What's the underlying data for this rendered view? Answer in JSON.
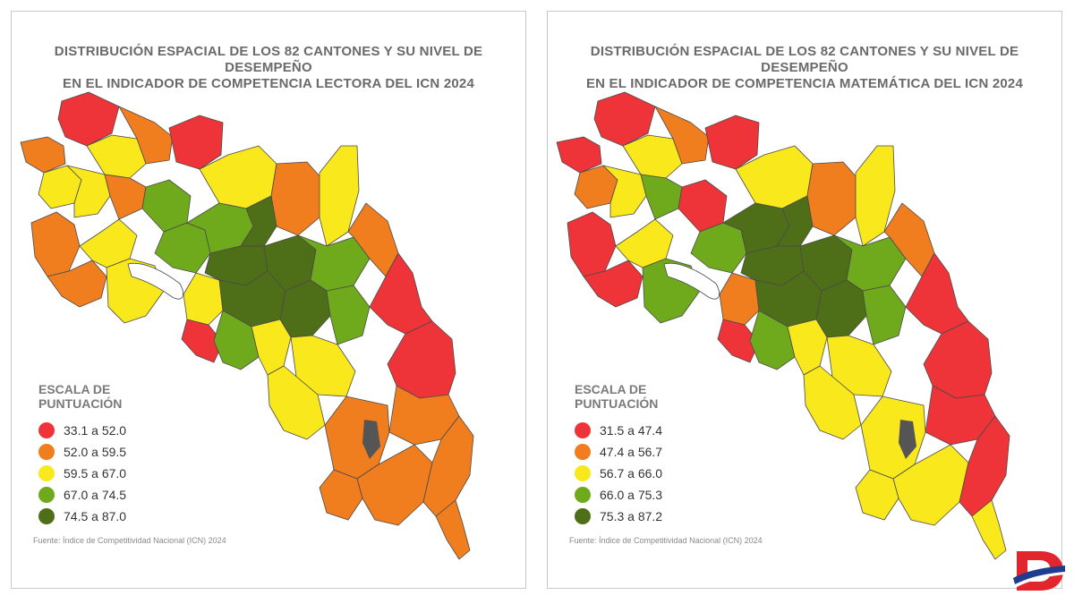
{
  "maps": [
    {
      "title_line1": "DISTRIBUCIÓN ESPACIAL DE LOS 82 CANTONES Y SU NIVEL DE DESEMPEÑO",
      "title_line2": "EN EL INDICADOR DE  COMPETENCIA LECTORA DEL ICN 2024",
      "legend_title_line1": "ESCALA DE",
      "legend_title_line2": "PUNTUACIÓN",
      "legend": [
        {
          "label": "33.1 a 52.0",
          "color": "#ee3438",
          "min": 33.1,
          "max": 52.0
        },
        {
          "label": "52.0 a 59.5",
          "color": "#f07d1e",
          "min": 52.0,
          "max": 59.5
        },
        {
          "label": "59.5 a 67.0",
          "color": "#f8e81c",
          "min": 59.5,
          "max": 67.0
        },
        {
          "label": "67.0 a 74.5",
          "color": "#6faa1c",
          "min": 67.0,
          "max": 74.5
        },
        {
          "label": "74.5 a 87.0",
          "color": "#4f6e18",
          "min": 74.5,
          "max": 87.0
        }
      ],
      "source": "Fuente: Índice de Competitividad Nacional (ICN) 2024"
    },
    {
      "title_line1": "DISTRIBUCIÓN ESPACIAL DE LOS 82 CANTONES Y SU NIVEL DE DESEMPEÑO",
      "title_line2": "EN EL INDICADOR DE  COMPETENCIA MATEMÁTICA DEL ICN 2024",
      "legend_title_line1": "ESCALA DE",
      "legend_title_line2": "PUNTUACIÓN",
      "legend": [
        {
          "label": "31.5 a 47.4",
          "color": "#ee3438",
          "min": 31.5,
          "max": 47.4
        },
        {
          "label": "47.4 a 56.7",
          "color": "#f07d1e",
          "min": 47.4,
          "max": 56.7
        },
        {
          "label": "56.7 a 66.0",
          "color": "#f8e81c",
          "min": 56.7,
          "max": 66.0
        },
        {
          "label": "66.0 a 75.3",
          "color": "#6faa1c",
          "min": 66.0,
          "max": 75.3
        },
        {
          "label": "75.3 a 87.2",
          "color": "#4f6e18",
          "min": 75.3,
          "max": 87.2
        }
      ],
      "source": "Fuente: Índice de Competitividad Nacional (ICN) 2024"
    }
  ],
  "colors": {
    "border": "#4a4a4a",
    "lake": "#ffffff",
    "logo_red": "#e3262d",
    "logo_blue": "#1f3c8f"
  },
  "brand_icon": "dp-logo-icon"
}
